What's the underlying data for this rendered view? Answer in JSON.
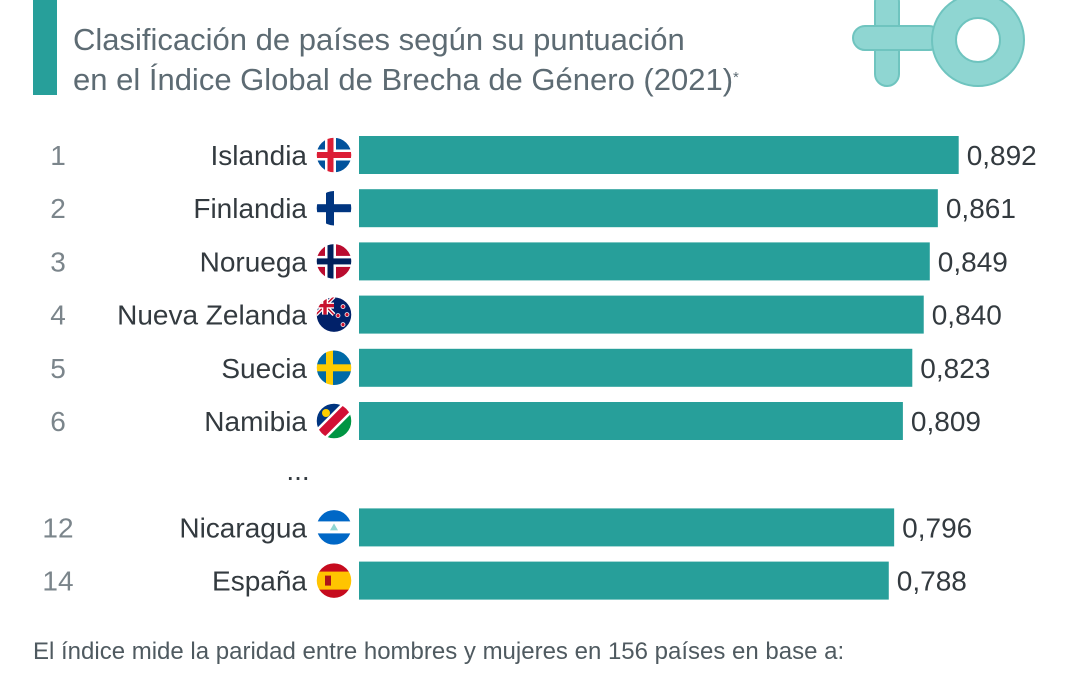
{
  "subtitle": {
    "line1": "Clasificación de países según su puntuación",
    "line2": "en el Índice Global de Brecha de Género (2021)",
    "asterisk": "*"
  },
  "colors": {
    "accent": "#279f9a",
    "bar": "#279f9a",
    "logo": "#8fd6d2",
    "text": "#333a3f",
    "rank": "#7b858b"
  },
  "chart_data": {
    "type": "bar",
    "orientation": "horizontal",
    "categories": [
      "Islandia",
      "Finlandia",
      "Noruega",
      "Nueva Zelanda",
      "Suecia",
      "Namibia",
      "Nicaragua",
      "España"
    ],
    "ranks": [
      "1",
      "2",
      "3",
      "4",
      "5",
      "6",
      "12",
      "14"
    ],
    "flags": [
      "iceland-flag",
      "finland-flag",
      "norway-flag",
      "new-zealand-flag",
      "sweden-flag",
      "namibia-flag",
      "nicaragua-flag",
      "spain-flag"
    ],
    "values": [
      0.892,
      0.861,
      0.849,
      0.84,
      0.823,
      0.809,
      0.796,
      0.788
    ],
    "value_labels": [
      "0,892",
      "0,861",
      "0,849",
      "0,840",
      "0,823",
      "0,809",
      "0,796",
      "0,788"
    ],
    "gap_marker": "...",
    "gap_after_index": 5,
    "grid": false,
    "legend": "none"
  },
  "footnote": "El índice mide la paridad entre hombres y mujeres en 156 países en base a:"
}
